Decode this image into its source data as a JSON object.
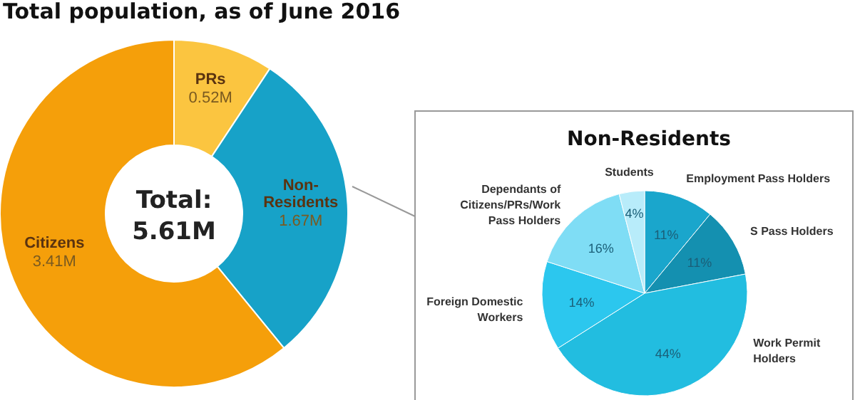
{
  "chart_data": [
    {
      "type": "donut",
      "title": "Total population, as of June 2016",
      "categories": [
        "PRs",
        "Non-Residents",
        "Citizens"
      ],
      "values": [
        0.52,
        1.67,
        3.41
      ],
      "colors": [
        "#fbc540",
        "#17a2c8",
        "#f59f0a"
      ],
      "value_labels": [
        "0.52M",
        "1.67M",
        "3.41M"
      ],
      "annotations": [
        "Total:",
        "5.61M"
      ]
    },
    {
      "type": "pie",
      "title": "Non-Residents",
      "categories": [
        "Employment Pass Holders",
        "S Pass Holders",
        "Work Permit Holders",
        "Foreign Domestic Workers",
        "Dependants of Citizens/PRs/Work Pass Holders",
        "Students"
      ],
      "values": [
        11,
        11,
        44,
        14,
        16,
        4
      ],
      "colors": [
        "#1aa6cc",
        "#1490b0",
        "#22bde0",
        "#2cc7ee",
        "#7fddf5",
        "#b8ecfa"
      ],
      "value_labels": [
        "11%",
        "11%",
        "44%",
        "14%",
        "16%",
        "4%"
      ]
    }
  ]
}
